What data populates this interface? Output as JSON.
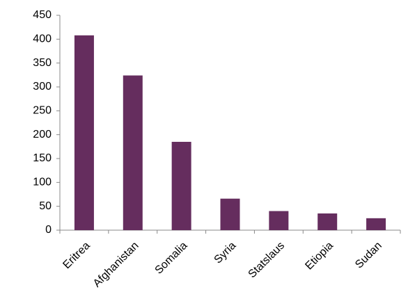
{
  "chart_data": {
    "type": "bar",
    "categories": [
      "Eritrea",
      "Afghanistan",
      "Somalia",
      "Syria",
      "Statslaus",
      "Etiopia",
      "Sudan"
    ],
    "values": [
      408,
      324,
      185,
      66,
      40,
      35,
      25
    ],
    "color": "#652d5e",
    "ylim": [
      0,
      450
    ],
    "yticks": [
      0,
      50,
      100,
      150,
      200,
      250,
      300,
      350,
      400,
      450
    ],
    "grid": false
  }
}
